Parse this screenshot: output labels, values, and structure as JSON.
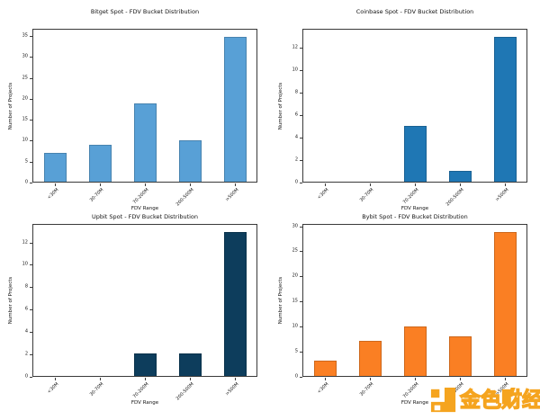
{
  "figure": {
    "background": "#ffffff"
  },
  "watermark": {
    "text": "金色财经",
    "logo": "jinse-finance-logo",
    "color": "#f5a41f"
  },
  "chart_data": [
    {
      "type": "bar",
      "title": "Bitget Spot - FDV Bucket Distribution",
      "xlabel": "FDV Range",
      "ylabel": "Number of Projects",
      "categories": [
        "<30M",
        "30-70M",
        "70-200M",
        "200-500M",
        ">500M"
      ],
      "values": [
        7,
        9,
        19,
        10,
        35
      ],
      "yticks": [
        0,
        5,
        10,
        15,
        20,
        25,
        30,
        35
      ],
      "ylim": [
        0,
        36.75
      ],
      "bar_color": "#58a0d6",
      "grid": false,
      "legend": false
    },
    {
      "type": "bar",
      "title": "Coinbase Spot - FDV Bucket Distribution",
      "xlabel": "FDV Range",
      "ylabel": "Number of Projects",
      "categories": [
        "<30M",
        "30-70M",
        "70-200M",
        "200-500M",
        ">500M"
      ],
      "values": [
        0,
        0,
        5,
        1,
        13
      ],
      "yticks": [
        0,
        2,
        4,
        6,
        8,
        10,
        12
      ],
      "ylim": [
        0,
        13.65
      ],
      "bar_color": "#1f77b4",
      "grid": false,
      "legend": false
    },
    {
      "type": "bar",
      "title": "Upbit Spot - FDV Bucket Distribution",
      "xlabel": "FDV Range",
      "ylabel": "Number of Projects",
      "categories": [
        "<30M",
        "30-70M",
        "70-200M",
        "200-500M",
        ">500M"
      ],
      "values": [
        0,
        0,
        2,
        2,
        13
      ],
      "yticks": [
        0,
        2,
        4,
        6,
        8,
        10,
        12
      ],
      "ylim": [
        0,
        13.65
      ],
      "bar_color": "#0d3d5c",
      "grid": false,
      "legend": false
    },
    {
      "type": "bar",
      "title": "Bybit Spot - FDV Bucket Distribution",
      "xlabel": "FDV Range",
      "ylabel": "Number of Projects",
      "categories": [
        "<30M",
        "30-70M",
        "70-200M",
        "200-500M",
        ">500M"
      ],
      "values": [
        3,
        7,
        10,
        8,
        29
      ],
      "yticks": [
        0,
        5,
        10,
        15,
        20,
        25,
        30
      ],
      "ylim": [
        0,
        30.45
      ],
      "bar_color": "#fa7f23",
      "grid": false,
      "legend": false
    }
  ]
}
